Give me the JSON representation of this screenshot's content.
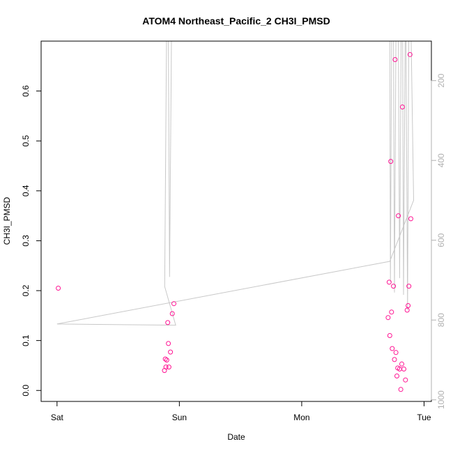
{
  "chart_data": {
    "type": "scatter",
    "title": "ATOM4 Northeast_Pacific_2 CH3I_PMSD",
    "xlabel": "Date",
    "ylabel": "CH3I_PMSD",
    "x_tick_labels": [
      "Sat",
      "Sun",
      "Mon",
      "Tue"
    ],
    "x_tick_days": [
      0,
      1,
      2,
      3
    ],
    "xlim_days": [
      -0.13,
      3.06
    ],
    "y_ticks": [
      "0.0",
      "0.1",
      "0.2",
      "0.3",
      "0.4",
      "0.5",
      "0.6"
    ],
    "ylim": [
      -0.022,
      0.7
    ],
    "y2_ticks": [
      "200",
      "400",
      "600",
      "800",
      "1000"
    ],
    "y2lim_reversed": [
      101,
      1004
    ],
    "point_color": "#ff1493",
    "line_color": "#c8c8c8",
    "grid": false,
    "series": [
      {
        "points": [
          {
            "x": 0.01,
            "y": 0.205
          },
          {
            "x": 0.878,
            "y": 0.04
          },
          {
            "x": 0.885,
            "y": 0.063
          },
          {
            "x": 0.89,
            "y": 0.047
          },
          {
            "x": 0.897,
            "y": 0.061
          },
          {
            "x": 0.905,
            "y": 0.136
          },
          {
            "x": 0.91,
            "y": 0.094
          },
          {
            "x": 0.915,
            "y": 0.047
          },
          {
            "x": 0.927,
            "y": 0.077
          },
          {
            "x": 0.942,
            "y": 0.154
          },
          {
            "x": 0.955,
            "y": 0.174
          },
          {
            "x": 2.706,
            "y": 0.146
          },
          {
            "x": 2.715,
            "y": 0.217
          },
          {
            "x": 2.72,
            "y": 0.11
          },
          {
            "x": 2.728,
            "y": 0.459
          },
          {
            "x": 2.734,
            "y": 0.157
          },
          {
            "x": 2.74,
            "y": 0.084
          },
          {
            "x": 2.75,
            "y": 0.209
          },
          {
            "x": 2.758,
            "y": 0.062
          },
          {
            "x": 2.763,
            "y": 0.663
          },
          {
            "x": 2.77,
            "y": 0.076
          },
          {
            "x": 2.778,
            "y": 0.029
          },
          {
            "x": 2.785,
            "y": 0.045
          },
          {
            "x": 2.79,
            "y": 0.35
          },
          {
            "x": 2.8,
            "y": 0.043
          },
          {
            "x": 2.81,
            "y": 0.002
          },
          {
            "x": 2.818,
            "y": 0.053
          },
          {
            "x": 2.823,
            "y": 0.568
          },
          {
            "x": 2.835,
            "y": 0.043
          },
          {
            "x": 2.848,
            "y": 0.021
          },
          {
            "x": 2.862,
            "y": 0.161
          },
          {
            "x": 2.87,
            "y": 0.17
          },
          {
            "x": 2.876,
            "y": 0.209
          },
          {
            "x": 2.885,
            "y": 0.673
          },
          {
            "x": 2.892,
            "y": 0.344
          }
        ]
      }
    ],
    "altitude_line": [
      {
        "x": 0.0,
        "y2": 810
      },
      {
        "x": 0.97,
        "y2": 813
      },
      {
        "x": 0.88,
        "y2": 716
      },
      {
        "x": 0.895,
        "y2": 101
      },
      {
        "x": 0.91,
        "y2": 101
      },
      {
        "x": 0.92,
        "y2": 692
      },
      {
        "x": 0.935,
        "y2": 101
      },
      {
        "x": 2.71,
        "y2": 101
      },
      {
        "x": 2.72,
        "y2": 101
      },
      {
        "x": 2.725,
        "y2": 705
      },
      {
        "x": 2.735,
        "y2": 101
      },
      {
        "x": 2.75,
        "y2": 101
      },
      {
        "x": 2.758,
        "y2": 731
      },
      {
        "x": 2.77,
        "y2": 101
      },
      {
        "x": 2.79,
        "y2": 101
      },
      {
        "x": 2.8,
        "y2": 695
      },
      {
        "x": 2.812,
        "y2": 101
      },
      {
        "x": 2.825,
        "y2": 101
      },
      {
        "x": 2.832,
        "y2": 737
      },
      {
        "x": 2.845,
        "y2": 101
      },
      {
        "x": 2.852,
        "y2": 101
      },
      {
        "x": 2.865,
        "y2": 775
      },
      {
        "x": 2.875,
        "y2": 101
      },
      {
        "x": 2.895,
        "y2": 101
      },
      {
        "x": 2.915,
        "y2": 500
      },
      {
        "x": 2.72,
        "y2": 653
      },
      {
        "x": 0.0,
        "y2": 810
      }
    ]
  }
}
